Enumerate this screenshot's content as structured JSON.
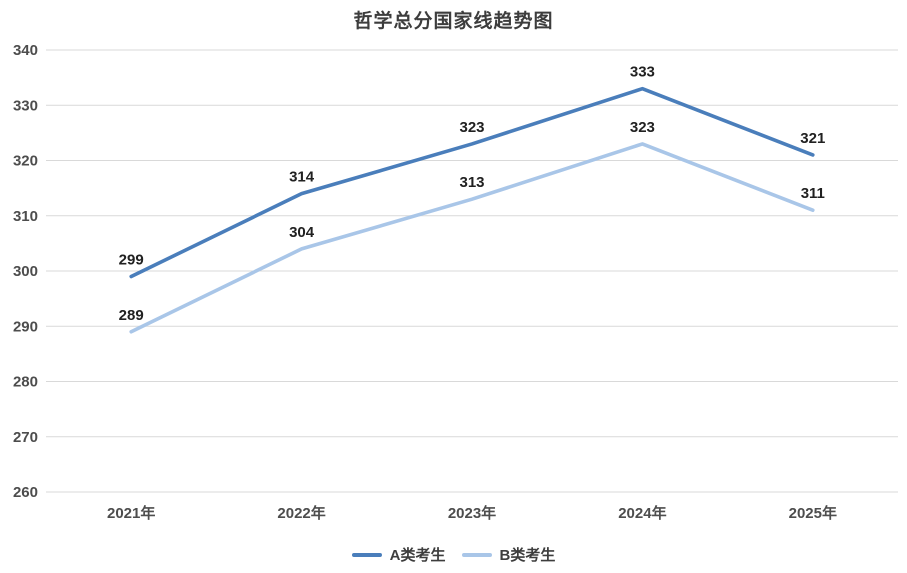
{
  "chart_data": {
    "type": "line",
    "title": "哲学总分国家线趋势图",
    "categories": [
      "2021年",
      "2022年",
      "2023年",
      "2024年",
      "2025年"
    ],
    "series": [
      {
        "name": "A类考生",
        "color": "#4a7ebb",
        "values": [
          299,
          314,
          323,
          333,
          321
        ]
      },
      {
        "name": "B类考生",
        "color": "#a9c6e8",
        "values": [
          289,
          304,
          313,
          323,
          311
        ]
      }
    ],
    "ylim": [
      260,
      340
    ],
    "ytick_step": 10,
    "grid": true,
    "legend_position": "bottom",
    "data_labels": true
  }
}
